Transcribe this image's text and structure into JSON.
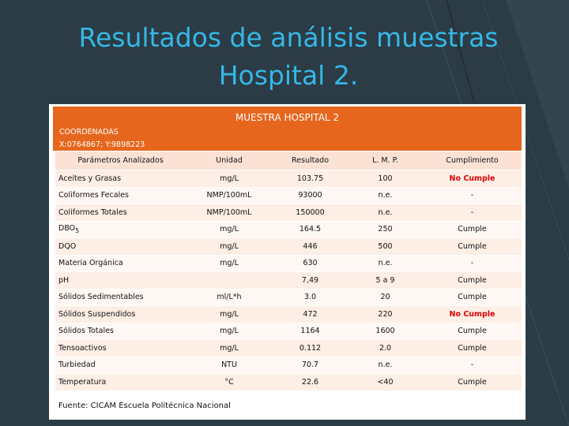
{
  "title_lines": [
    "Resultados de análisis muestras",
    "Hospital 2."
  ],
  "panel": {
    "heading": "MUESTRA HOSPITAL 2",
    "coordinates_label": "COORDENADAS",
    "coordinates": "X:0764867; Y:9898223",
    "table": {
      "header": [
        "Parámetros Analizados",
        "Unidad",
        "Resultado",
        "L. M. P.",
        "Cumplimiento"
      ],
      "rows": [
        {
          "cells": [
            "Aceites y Grasas",
            "mg/L",
            "103.75",
            "100",
            "No Cumple"
          ],
          "status_color": "#e00000"
        },
        {
          "cells": [
            "Coliformes Fecales",
            "NMP/100mL",
            "93000",
            "n.e.",
            "-"
          ]
        },
        {
          "cells": [
            "Coliformes Totales",
            "NMP/100mL",
            "150000",
            "n.e.",
            "-"
          ]
        },
        {
          "cells": [
            {
              "base": "DBO",
              "subscript": "5"
            },
            "mg/L",
            "164.5",
            "250",
            "Cumple"
          ]
        },
        {
          "cells": [
            "DQO",
            "mg/L",
            "446",
            "500",
            "Cumple"
          ]
        },
        {
          "cells": [
            "Materia Orgánica",
            "mg/L",
            "630",
            "n.e.",
            "-"
          ]
        },
        {
          "cells": [
            "pH",
            null,
            "7,49",
            "5 a 9",
            "Cumple"
          ]
        },
        {
          "cells": [
            "Sólidos Sedimentables",
            "ml/L*h",
            "3.0",
            "20",
            "Cumple"
          ]
        },
        {
          "cells": [
            "Sólidos Suspendidos",
            "mg/L",
            "472",
            "220",
            "No Cumple"
          ],
          "status_color": "#e00000"
        },
        {
          "cells": [
            "Sólidos Totales",
            "mg/L",
            "1164",
            "1600",
            "Cumple"
          ]
        },
        {
          "cells": [
            "Tensoactivos",
            "mg/L",
            "0.112",
            "2.0",
            "Cumple"
          ]
        },
        {
          "cells": [
            "Turbiedad",
            "NTU",
            "70.7",
            "n.e.",
            "-"
          ]
        },
        {
          "cells": [
            "Temperatura",
            "°C",
            "22.6",
            "<40",
            "Cumple"
          ]
        }
      ]
    },
    "source": "Fuente: CICAM Escuela Politécnica Nacional"
  }
}
